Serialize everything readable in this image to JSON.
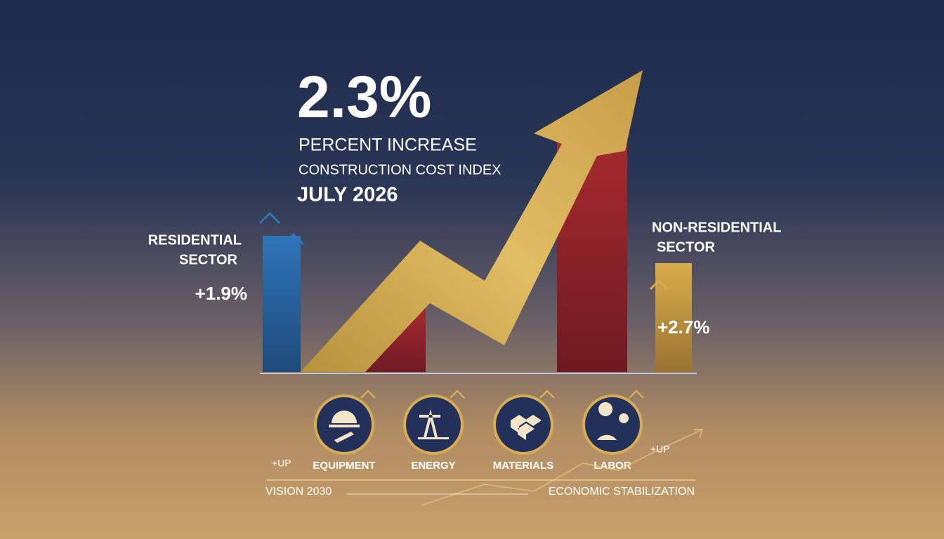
{
  "headline": {
    "value": "2.3%",
    "line1": "PERCENT INCREASE",
    "line2": "CONSTRUCTION COST INDEX",
    "date": "JULY 2026"
  },
  "sectors": [
    {
      "label_lines": [
        "RESIDENTIAL",
        "SECTOR"
      ],
      "change": "+1.9%"
    },
    {
      "label_lines": [
        "NON-RESIDENTIAL",
        "SECTOR"
      ],
      "change": "+2.7%"
    }
  ],
  "drivers": [
    "EQUIPMENT",
    "ENERGY",
    "MATERIALS",
    "LABOR"
  ],
  "up_labels": [
    "+UP",
    "+UP"
  ],
  "footer": {
    "left": "VISION 2030",
    "right": "ECONOMIC STABILIZATION"
  }
}
